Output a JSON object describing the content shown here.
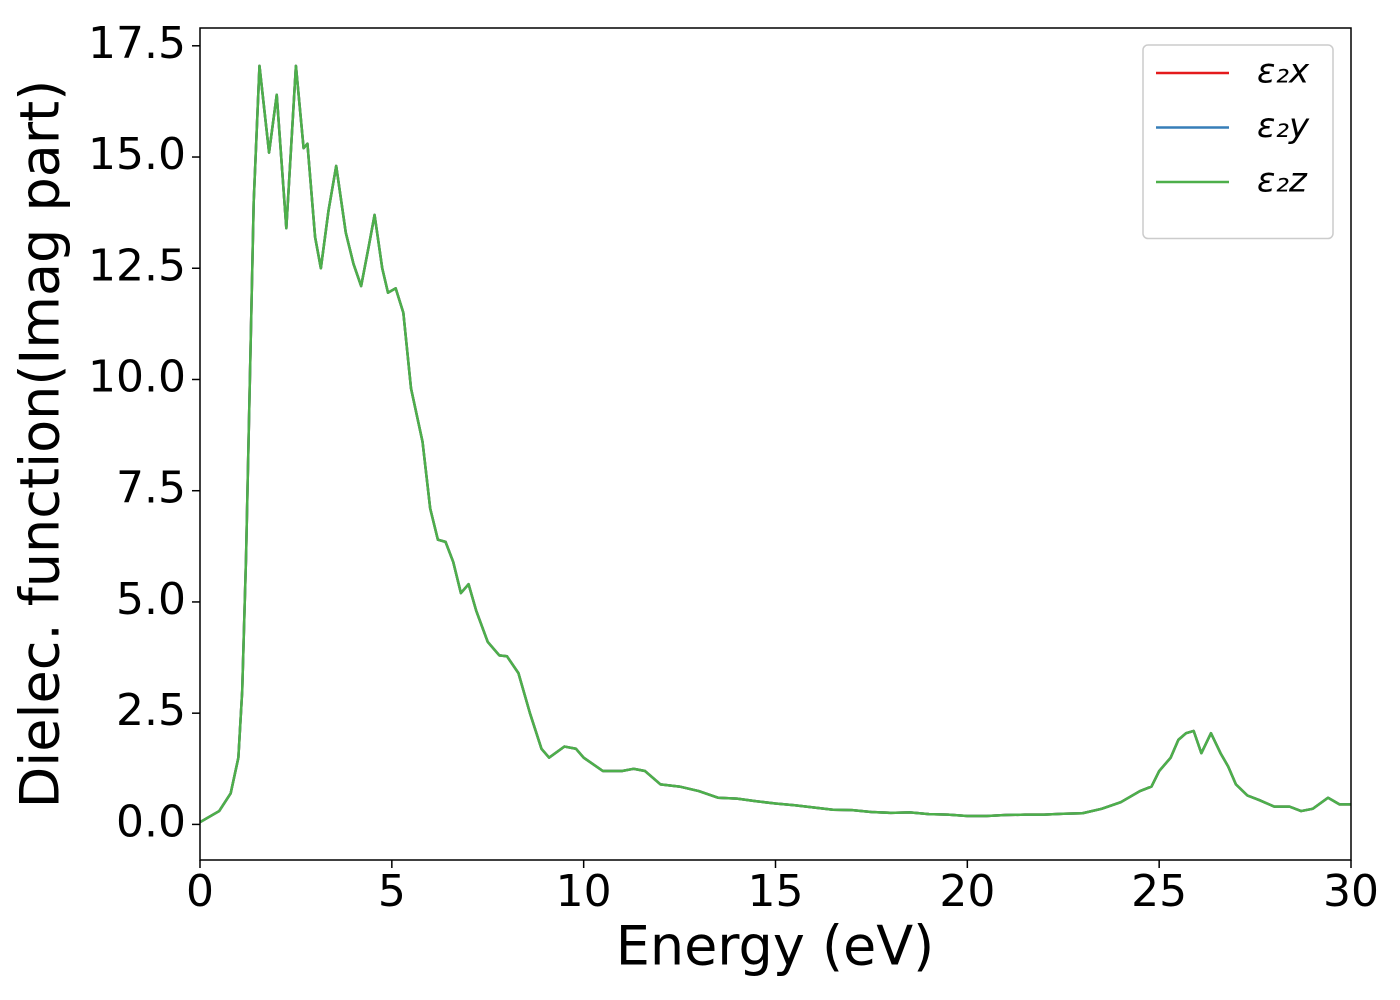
{
  "chart_data": {
    "type": "line",
    "x_label": "Energy (eV)",
    "y_label": "Dielec. function(Imag part)",
    "x": [
      0,
      0.5,
      0.8,
      1.0,
      1.1,
      1.2,
      1.3,
      1.4,
      1.55,
      1.8,
      2.0,
      2.25,
      2.5,
      2.7,
      2.8,
      3.0,
      3.15,
      3.35,
      3.55,
      3.8,
      4.0,
      4.2,
      4.4,
      4.55,
      4.75,
      4.9,
      5.1,
      5.3,
      5.5,
      5.8,
      6.0,
      6.2,
      6.4,
      6.6,
      6.8,
      7.0,
      7.2,
      7.5,
      7.8,
      8.0,
      8.3,
      8.6,
      8.9,
      9.1,
      9.5,
      9.8,
      10.0,
      10.5,
      11.0,
      11.3,
      11.6,
      12.0,
      12.5,
      13.0,
      13.5,
      14.0,
      14.5,
      15.0,
      15.5,
      16.0,
      16.5,
      17.0,
      17.5,
      18.0,
      18.5,
      19.0,
      19.5,
      20.0,
      20.5,
      21.0,
      21.5,
      22.0,
      22.5,
      23.0,
      23.5,
      24.0,
      24.5,
      24.8,
      25.0,
      25.3,
      25.5,
      25.7,
      25.9,
      26.1,
      26.35,
      26.6,
      26.8,
      27.0,
      27.3,
      27.6,
      28.0,
      28.4,
      28.7,
      29.0,
      29.4,
      29.7,
      30.0
    ],
    "series": [
      {
        "name": "ε₂x",
        "color": "#e41a1c",
        "values": [
          0.05,
          0.3,
          0.7,
          1.5,
          3.0,
          6,
          10,
          14,
          17.05,
          15.1,
          16.4,
          13.4,
          17.05,
          15.2,
          15.3,
          13.2,
          12.5,
          13.8,
          14.8,
          13.3,
          12.6,
          12.1,
          13.0,
          13.7,
          12.5,
          11.95,
          12.05,
          11.5,
          9.8,
          8.6,
          7.1,
          6.4,
          6.35,
          5.9,
          5.2,
          5.4,
          4.8,
          4.1,
          3.8,
          3.78,
          3.4,
          2.5,
          1.7,
          1.5,
          1.75,
          1.7,
          1.5,
          1.2,
          1.2,
          1.25,
          1.2,
          0.9,
          0.85,
          0.75,
          0.6,
          0.58,
          0.52,
          0.47,
          0.43,
          0.38,
          0.33,
          0.32,
          0.28,
          0.26,
          0.27,
          0.23,
          0.22,
          0.19,
          0.19,
          0.21,
          0.22,
          0.22,
          0.24,
          0.25,
          0.35,
          0.5,
          0.75,
          0.85,
          1.2,
          1.5,
          1.9,
          2.05,
          2.1,
          1.6,
          2.05,
          1.6,
          1.3,
          0.9,
          0.65,
          0.55,
          0.4,
          0.4,
          0.3,
          0.35,
          0.6,
          0.45,
          0.45
        ]
      },
      {
        "name": "ε₂y",
        "color": "#377eb8",
        "values": [
          0.05,
          0.3,
          0.7,
          1.5,
          3.0,
          6,
          10,
          14,
          17.05,
          15.1,
          16.4,
          13.4,
          17.05,
          15.2,
          15.3,
          13.2,
          12.5,
          13.8,
          14.8,
          13.3,
          12.6,
          12.1,
          13.0,
          13.7,
          12.5,
          11.95,
          12.05,
          11.5,
          9.8,
          8.6,
          7.1,
          6.4,
          6.35,
          5.9,
          5.2,
          5.4,
          4.8,
          4.1,
          3.8,
          3.78,
          3.4,
          2.5,
          1.7,
          1.5,
          1.75,
          1.7,
          1.5,
          1.2,
          1.2,
          1.25,
          1.2,
          0.9,
          0.85,
          0.75,
          0.6,
          0.58,
          0.52,
          0.47,
          0.43,
          0.38,
          0.33,
          0.32,
          0.28,
          0.26,
          0.27,
          0.23,
          0.22,
          0.19,
          0.19,
          0.21,
          0.22,
          0.22,
          0.24,
          0.25,
          0.35,
          0.5,
          0.75,
          0.85,
          1.2,
          1.5,
          1.9,
          2.05,
          2.1,
          1.6,
          2.05,
          1.6,
          1.3,
          0.9,
          0.65,
          0.55,
          0.4,
          0.4,
          0.3,
          0.35,
          0.6,
          0.45,
          0.45
        ]
      },
      {
        "name": "ε₂z",
        "color": "#4daf4a",
        "values": [
          0.05,
          0.3,
          0.7,
          1.5,
          3.0,
          6,
          10,
          14,
          17.05,
          15.1,
          16.4,
          13.4,
          17.05,
          15.2,
          15.3,
          13.2,
          12.5,
          13.8,
          14.8,
          13.3,
          12.6,
          12.1,
          13.0,
          13.7,
          12.5,
          11.95,
          12.05,
          11.5,
          9.8,
          8.6,
          7.1,
          6.4,
          6.35,
          5.9,
          5.2,
          5.4,
          4.8,
          4.1,
          3.8,
          3.78,
          3.4,
          2.5,
          1.7,
          1.5,
          1.75,
          1.7,
          1.5,
          1.2,
          1.2,
          1.25,
          1.2,
          0.9,
          0.85,
          0.75,
          0.6,
          0.58,
          0.52,
          0.47,
          0.43,
          0.38,
          0.33,
          0.32,
          0.28,
          0.26,
          0.27,
          0.23,
          0.22,
          0.19,
          0.19,
          0.21,
          0.22,
          0.22,
          0.24,
          0.25,
          0.35,
          0.5,
          0.75,
          0.85,
          1.2,
          1.5,
          1.9,
          2.05,
          2.1,
          1.6,
          2.05,
          1.6,
          1.3,
          0.9,
          0.65,
          0.55,
          0.4,
          0.4,
          0.3,
          0.35,
          0.6,
          0.45,
          0.45
        ]
      }
    ],
    "xlim": [
      0,
      30
    ],
    "xticks": [
      0,
      5,
      10,
      15,
      20,
      25,
      30
    ],
    "ylim": [
      -0.8,
      17.9
    ],
    "yticks": [
      {
        "value": 0,
        "label": "0.0"
      },
      {
        "value": 2.5,
        "label": "2.5"
      },
      {
        "value": 5,
        "label": "5.0"
      },
      {
        "value": 7.5,
        "label": "7.5"
      },
      {
        "value": 10,
        "label": "10.0"
      },
      {
        "value": 12.5,
        "label": "12.5"
      },
      {
        "value": 15,
        "label": "15.0"
      },
      {
        "value": 17.5,
        "label": "17.5"
      }
    ],
    "legend": "upper right",
    "grid": false
  }
}
